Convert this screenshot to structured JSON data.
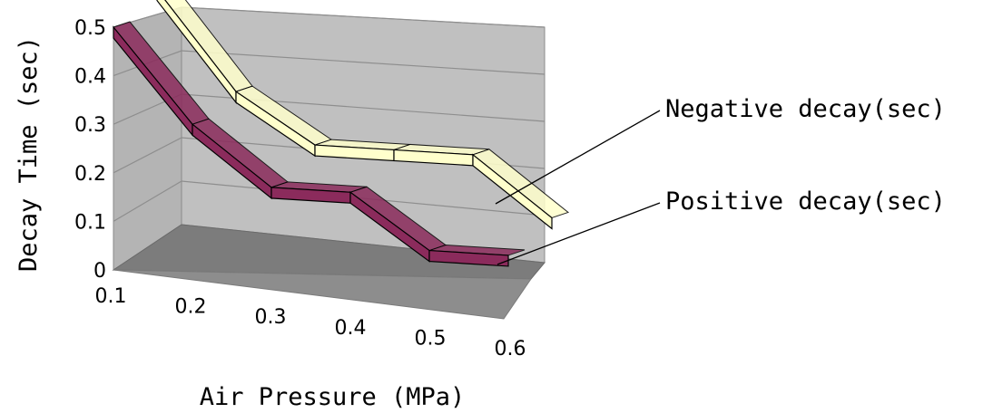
{
  "chart_data": {
    "type": "line",
    "style": "3d",
    "title": "",
    "xlabel": "Air Pressure (MPa)",
    "ylabel": "Decay Time (sec)",
    "x": [
      0.1,
      0.2,
      0.3,
      0.4,
      0.5,
      0.6
    ],
    "x_tick_labels": [
      "0.1",
      "0.2",
      "0.3",
      "0.4",
      "0.5",
      "0.6"
    ],
    "y_tick_labels": [
      "0",
      "0.1",
      "0.2",
      "0.3",
      "0.4",
      "0.5"
    ],
    "ylim": [
      0,
      0.5
    ],
    "grid": true,
    "legend_placement": "right",
    "series": [
      {
        "name": "Positive decay(sec)",
        "values": [
          0.5,
          0.3,
          0.17,
          0.16,
          0.04,
          0.03
        ],
        "color": "#8b2b5c"
      },
      {
        "name": "Negative decay(sec)",
        "values": [
          0.54,
          0.33,
          0.22,
          0.21,
          0.2,
          0.07
        ],
        "color": "#ffffcc"
      }
    ]
  }
}
